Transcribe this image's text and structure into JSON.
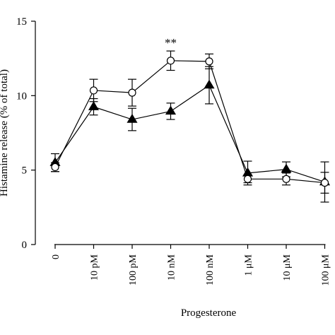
{
  "chart_data": {
    "type": "line",
    "title": "",
    "xlabel": "Progesterone",
    "ylabel": "Histamine release (% of total)",
    "ylim": [
      0,
      15
    ],
    "yticks": [
      "0",
      "5",
      "10",
      "15"
    ],
    "yticks_values": [
      0,
      5,
      10,
      15
    ],
    "categories": [
      "0",
      "10 pM",
      "100 pM",
      "10 nM",
      "100 nM",
      "1 μM",
      "10 μM",
      "100 μM"
    ],
    "series": [
      {
        "marker": "open-circle",
        "values": [
          5.2,
          10.35,
          10.2,
          12.35,
          12.3,
          4.4,
          4.4,
          4.15
        ],
        "errors": [
          0.3,
          0.75,
          0.9,
          0.65,
          0.5,
          0.25,
          0.4,
          0.7
        ]
      },
      {
        "marker": "filled-triangle",
        "values": [
          5.5,
          9.25,
          8.4,
          8.95,
          10.7,
          4.8,
          5.05,
          4.2
        ],
        "errors": [
          0.6,
          0.55,
          0.75,
          0.55,
          1.25,
          0.8,
          0.5,
          1.35
        ]
      }
    ],
    "annotations": [
      {
        "text": "**",
        "category": "10 nM"
      }
    ],
    "grid": false,
    "legend": "none"
  }
}
